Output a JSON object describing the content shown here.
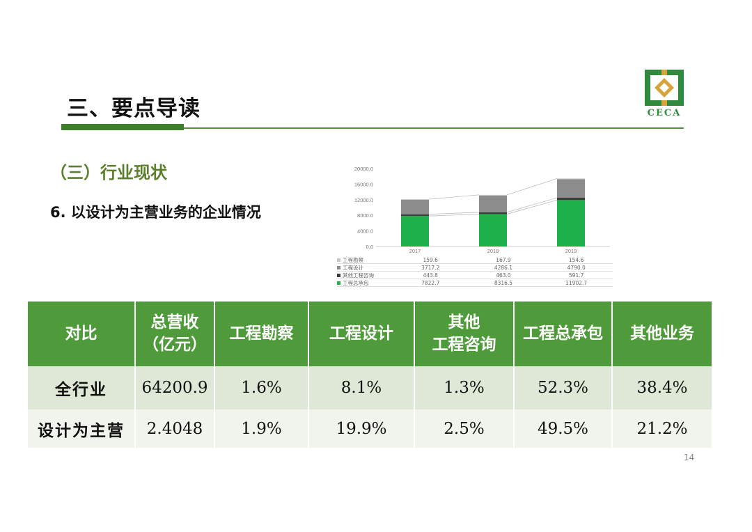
{
  "header": {
    "title": "三、要点导读",
    "logo_text": "CECA"
  },
  "section": {
    "heading": "（三）行业现状",
    "subheading": "6. 以设计为主营业务的企业情况"
  },
  "chart_data": {
    "type": "bar",
    "stacked": true,
    "categories": [
      "2017",
      "2018",
      "2019"
    ],
    "series": [
      {
        "name": "工程总承包",
        "values": [
          7822.7,
          8316.5,
          11902.7
        ],
        "color": "#1fb04b"
      },
      {
        "name": "其他工程咨询",
        "values": [
          443.8,
          463.0,
          591.7
        ],
        "color": "#3a3a3a"
      },
      {
        "name": "工程设计",
        "values": [
          3717.2,
          4286.1,
          4790.0
        ],
        "color": "#8c8c8c"
      },
      {
        "name": "工程勘察",
        "values": [
          159.6,
          167.9,
          154.6
        ],
        "color": "#c8c8c8"
      }
    ],
    "y_ticks": [
      "0.0",
      "4000.0",
      "8000.0",
      "12000.0",
      "16000.0",
      "20000.0"
    ],
    "ylim": [
      0,
      20000
    ],
    "legend_rows": [
      {
        "label": "工程勘察",
        "color": "#c8c8c8",
        "cells": [
          "159.6",
          "167.9",
          "154.6"
        ]
      },
      {
        "label": "工程设计",
        "color": "#8c8c8c",
        "cells": [
          "3717.2",
          "4286.1",
          "4790.0"
        ]
      },
      {
        "label": "其他工程咨询",
        "color": "#3a3a3a",
        "cells": [
          "443.8",
          "463.0",
          "591.7"
        ]
      },
      {
        "label": "工程总承包",
        "color": "#1fb04b",
        "cells": [
          "7822.7",
          "8316.5",
          "11902.7"
        ]
      }
    ]
  },
  "table": {
    "headers": [
      "对比",
      "总营收\n（亿元）",
      "工程勘察",
      "工程设计",
      "其他\n工程咨询",
      "工程总承包",
      "其他业务"
    ],
    "rows": [
      {
        "cells": [
          "全行业",
          "64200.9",
          "1.6%",
          "8.1%",
          "1.3%",
          "52.3%",
          "38.4%"
        ]
      },
      {
        "cells": [
          "设计为主营",
          "2.4048",
          "1.9%",
          "19.9%",
          "2.5%",
          "49.5%",
          "21.2%"
        ]
      }
    ]
  },
  "colors": {
    "accent_green": "#4f9a3a",
    "highlight_red": "#d8242a",
    "highlight_blue": "#2a7fc4"
  },
  "footer": {
    "page_number": "14"
  }
}
